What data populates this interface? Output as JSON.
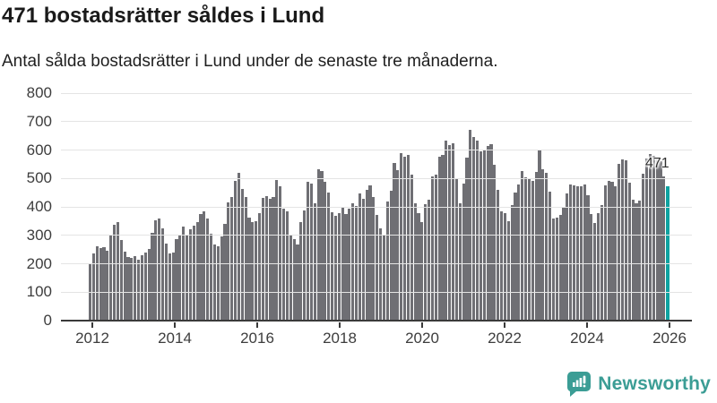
{
  "header": {
    "title": "471 bostadsrätter såldes i Lund",
    "subtitle": "Antal sålda bostadsrätter i Lund under de senaste tre månaderna."
  },
  "chart_data": {
    "type": "bar",
    "title": "471 bostadsrätter såldes i Lund",
    "subtitle": "Antal sålda bostadsrätter i Lund under de senaste tre månaderna.",
    "x_start": "2012-01",
    "frequency": "monthly-rolling-3-month-total",
    "x_tick_labels": [
      "2012",
      "2014",
      "2016",
      "2018",
      "2020",
      "2022",
      "2024",
      "2026"
    ],
    "ylim": [
      0,
      800
    ],
    "ytick_step": 100,
    "ytick_labels": [
      "0",
      "100",
      "200",
      "300",
      "400",
      "500",
      "600",
      "700",
      "800"
    ],
    "grid": true,
    "bar_color": "#6f6f74",
    "highlight_color": "#0fa3a1",
    "values": [
      200,
      235,
      262,
      255,
      258,
      246,
      300,
      337,
      345,
      282,
      243,
      223,
      219,
      227,
      214,
      230,
      240,
      252,
      310,
      353,
      358,
      326,
      272,
      235,
      240,
      288,
      300,
      330,
      303,
      321,
      335,
      345,
      374,
      384,
      358,
      306,
      267,
      261,
      297,
      340,
      416,
      435,
      492,
      521,
      464,
      435,
      363,
      345,
      351,
      377,
      433,
      437,
      429,
      435,
      496,
      471,
      393,
      384,
      300,
      286,
      269,
      345,
      387,
      487,
      482,
      414,
      531,
      527,
      489,
      450,
      380,
      370,
      377,
      398,
      374,
      393,
      412,
      403,
      447,
      429,
      461,
      477,
      435,
      372,
      324,
      298,
      419,
      458,
      555,
      529,
      590,
      576,
      584,
      513,
      414,
      377,
      345,
      408,
      426,
      508,
      513,
      576,
      582,
      632,
      618,
      624,
      498,
      414,
      482,
      573,
      671,
      645,
      632,
      594,
      600,
      613,
      621,
      548,
      461,
      384,
      377,
      349,
      405,
      450,
      480,
      527,
      503,
      500,
      492,
      524,
      597,
      531,
      519,
      454,
      359,
      363,
      372,
      401,
      447,
      479,
      477,
      471,
      474,
      479,
      440,
      374,
      342,
      377,
      405,
      477,
      492,
      487,
      474,
      550,
      566,
      563,
      485,
      426,
      414,
      422,
      517,
      569,
      587,
      580,
      573,
      561,
      508,
      471
    ],
    "highlight": {
      "index": 167,
      "value": 471,
      "label": "471"
    }
  },
  "footer": {
    "brand": "Newsworthy",
    "logo_icon": "newsworthy-speech-bubble-chart-icon",
    "brand_color": "#3b9d95"
  },
  "colors": {
    "background": "#ffffff",
    "bar": "#6f6f74",
    "accent_teal": "#0fa3a1",
    "grid": "#e4e4e4",
    "axis": "#3a3a3a",
    "text": "#1a1a1a"
  }
}
